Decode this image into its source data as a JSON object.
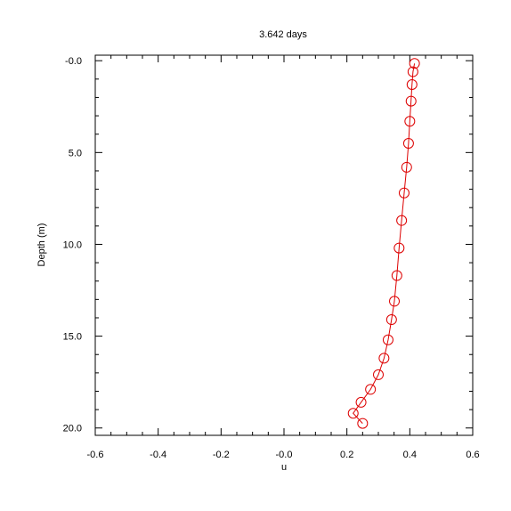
{
  "chart_data": {
    "type": "line",
    "title": "3.642 days",
    "xlabel": "u",
    "ylabel": "Depth (m)",
    "xlim": [
      -0.6,
      0.6
    ],
    "ylim": [
      -0.3,
      20.4
    ],
    "y_inverted": true,
    "x_ticks": [
      "-0.6",
      "-0.4",
      "-0.2",
      "-0.0",
      "0.2",
      "0.4",
      "0.6"
    ],
    "x_tick_values": [
      -0.6,
      -0.4,
      -0.2,
      0.0,
      0.2,
      0.4,
      0.6
    ],
    "y_ticks": [
      "-0.0",
      "5.0",
      "10.0",
      "15.0",
      "20.0"
    ],
    "y_tick_values": [
      0,
      5,
      10,
      15,
      20
    ],
    "grid": false,
    "colors": {
      "series": "#dd0000",
      "axes": "#000000"
    },
    "series": [
      {
        "marker": "circle",
        "x": [
          0.415,
          0.41,
          0.407,
          0.404,
          0.4,
          0.396,
          0.39,
          0.382,
          0.374,
          0.366,
          0.359,
          0.351,
          0.342,
          0.331,
          0.318,
          0.3,
          0.275,
          0.245,
          0.22,
          0.25
        ],
        "y": [
          0.15,
          0.6,
          1.3,
          2.2,
          3.3,
          4.5,
          5.8,
          7.2,
          8.7,
          10.2,
          11.7,
          13.1,
          14.1,
          15.2,
          16.2,
          17.1,
          17.9,
          18.6,
          19.2,
          19.75
        ]
      }
    ]
  }
}
